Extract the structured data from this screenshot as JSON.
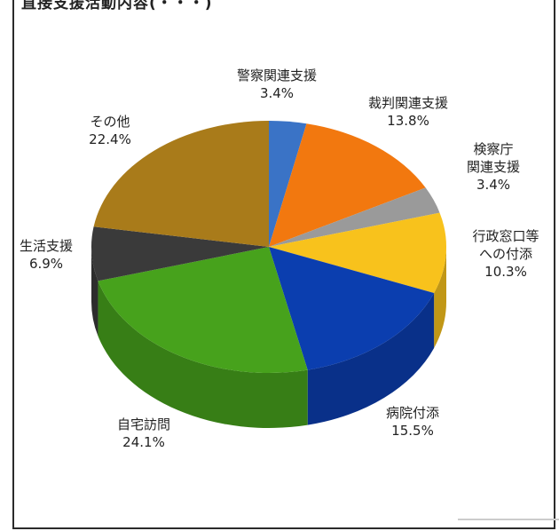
{
  "page": {
    "title": "直接支援活動内容(・・・)"
  },
  "chart_data": {
    "type": "pie",
    "title": "",
    "slices": [
      {
        "name": "警察関連支援",
        "label_lines": [
          "警察関連支援"
        ],
        "value": 3.4,
        "percent_label": "3.4%",
        "color": "#3a73c6"
      },
      {
        "name": "裁判関連支援",
        "label_lines": [
          "裁判関連支援"
        ],
        "value": 13.8,
        "percent_label": "13.8%",
        "color": "#f2780f"
      },
      {
        "name": "検察庁関連支援",
        "label_lines": [
          "検察庁",
          "関連支援"
        ],
        "value": 3.4,
        "percent_label": "3.4%",
        "color": "#9a9a9a"
      },
      {
        "name": "行政窓口等への付添",
        "label_lines": [
          "行政窓口等",
          "への付添"
        ],
        "value": 10.3,
        "percent_label": "10.3%",
        "color": "#f8c21c"
      },
      {
        "name": "病院付添",
        "label_lines": [
          "病院付添"
        ],
        "value": 15.5,
        "percent_label": "15.5%",
        "color": "#0b3eaf"
      },
      {
        "name": "自宅訪問",
        "label_lines": [
          "自宅訪問"
        ],
        "value": 24.1,
        "percent_label": "24.1%",
        "color": "#47a21c"
      },
      {
        "name": "生活支援",
        "label_lines": [
          "生活支援"
        ],
        "value": 6.9,
        "percent_label": "6.9%",
        "color": "#3a3a3a"
      },
      {
        "name": "その他",
        "label_lines": [
          "その他"
        ],
        "value": 22.4,
        "percent_label": "22.4%",
        "color": "#a97b1a"
      }
    ],
    "legend": "none"
  }
}
